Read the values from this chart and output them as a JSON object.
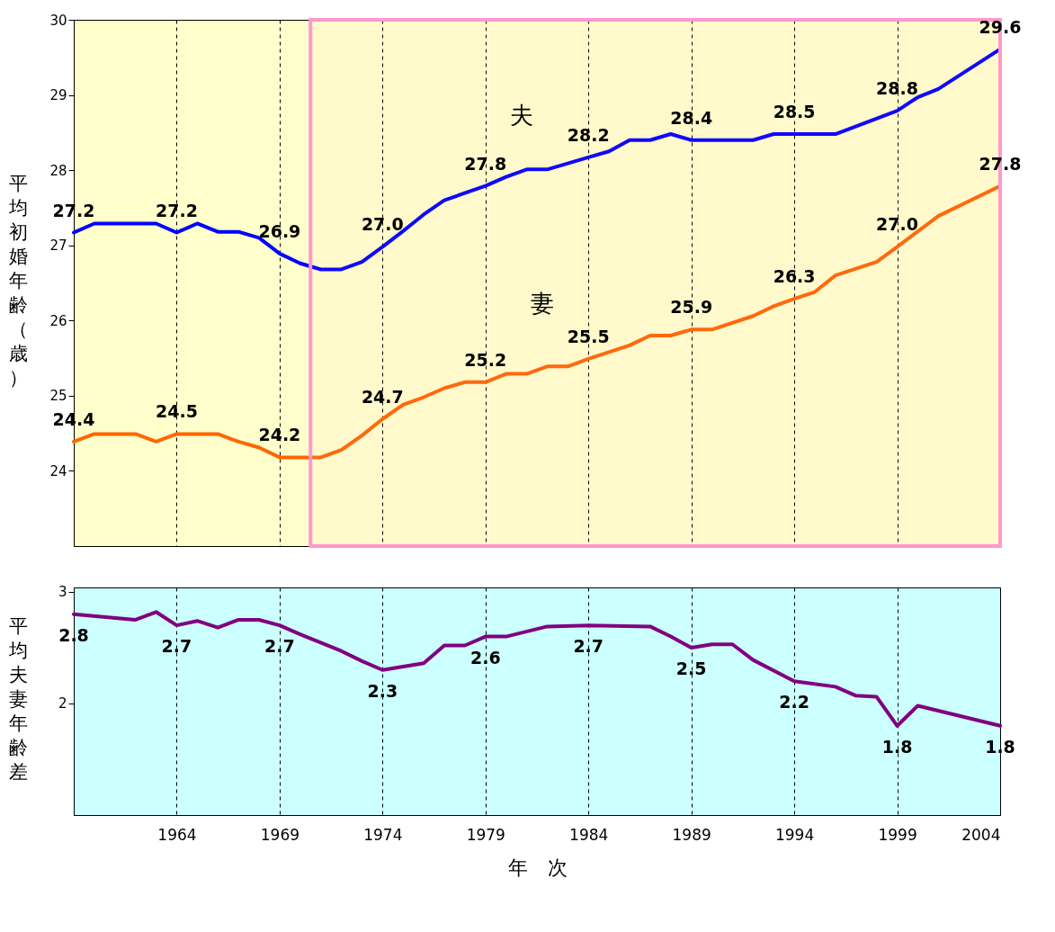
{
  "chart_data": [
    {
      "type": "line",
      "ylabel": "平均初婚年齢（歳）",
      "xlim": [
        1959,
        2004
      ],
      "xticks": [
        1964,
        1969,
        1974,
        1979,
        1984,
        1989,
        1994,
        1999,
        2004
      ],
      "ylim": [
        23,
        30
      ],
      "yticks": [
        24,
        25,
        26,
        27,
        28,
        29,
        30
      ],
      "grid": "x",
      "tick_labels": "y",
      "legend": false,
      "bands": [
        {
          "axis": "x",
          "from": 1970.5,
          "to": 2004,
          "color": "#ff99cc"
        }
      ],
      "series": [
        {
          "name": "夫",
          "color": "#0000ff",
          "x": [
            1959,
            1960,
            1963,
            1964,
            1965,
            1966,
            1967,
            1968,
            1969,
            1970,
            1971,
            1972,
            1973,
            1974,
            1975,
            1976,
            1977,
            1979,
            1980,
            1981,
            1982,
            1984,
            1985,
            1986,
            1987,
            1988,
            1989,
            1992,
            1993,
            1994,
            1996,
            1999,
            2000,
            2001,
            2004
          ],
          "values": [
            27.17,
            27.29,
            27.29,
            27.17,
            27.29,
            27.18,
            27.18,
            27.1,
            26.89,
            26.76,
            26.68,
            26.68,
            26.78,
            26.98,
            27.19,
            27.41,
            27.6,
            27.79,
            27.91,
            28.01,
            28.01,
            28.17,
            28.25,
            28.4,
            28.4,
            28.48,
            28.4,
            28.4,
            28.48,
            28.48,
            28.48,
            28.79,
            28.97,
            29.08,
            29.61
          ],
          "value_labels": [
            "27.2",
            null,
            null,
            "27.2",
            null,
            null,
            null,
            null,
            "26.9",
            null,
            null,
            null,
            null,
            "27.0",
            null,
            null,
            null,
            "27.8",
            null,
            null,
            null,
            "28.2",
            null,
            null,
            null,
            null,
            "28.4",
            null,
            null,
            "28.5",
            null,
            "28.8",
            null,
            null,
            "29.6"
          ]
        },
        {
          "name": "妻",
          "color": "#ff6600",
          "x": [
            1959,
            1960,
            1962,
            1963,
            1964,
            1966,
            1967,
            1968,
            1969,
            1971,
            1972,
            1973,
            1974,
            1975,
            1976,
            1977,
            1978,
            1979,
            1980,
            1981,
            1982,
            1983,
            1984,
            1986,
            1987,
            1988,
            1989,
            1990,
            1992,
            1993,
            1994,
            1995,
            1996,
            1998,
            1999,
            2001,
            2004
          ],
          "values": [
            24.39,
            24.49,
            24.49,
            24.39,
            24.49,
            24.49,
            24.39,
            24.31,
            24.18,
            24.18,
            24.28,
            24.47,
            24.69,
            24.88,
            24.98,
            25.1,
            25.18,
            25.18,
            25.29,
            25.29,
            25.39,
            25.39,
            25.49,
            25.67,
            25.8,
            25.8,
            25.88,
            25.88,
            26.06,
            26.19,
            26.29,
            26.38,
            26.6,
            26.78,
            26.98,
            27.39,
            27.79
          ],
          "value_labels": [
            "24.4",
            null,
            null,
            null,
            "24.5",
            null,
            null,
            null,
            "24.2",
            null,
            null,
            null,
            "24.7",
            null,
            null,
            null,
            null,
            "25.2",
            null,
            null,
            null,
            null,
            "25.5",
            null,
            null,
            null,
            "25.9",
            null,
            null,
            null,
            "26.3",
            null,
            null,
            null,
            "27.0",
            null,
            "27.8"
          ]
        }
      ]
    },
    {
      "type": "line",
      "xlabel": "年　次",
      "ylabel": "平均夫妻年齢差",
      "xlim": [
        1959,
        2004
      ],
      "xticks": [
        1964,
        1969,
        1974,
        1979,
        1984,
        1989,
        1994,
        1999,
        2004
      ],
      "ylim": [
        1.0,
        3.04
      ],
      "yticks": [
        2,
        3
      ],
      "grid": "x",
      "legend": false,
      "color": "#800080",
      "x": [
        1959,
        1962,
        1963,
        1964,
        1965,
        1966,
        1967,
        1968,
        1969,
        1970,
        1972,
        1973,
        1974,
        1976,
        1977,
        1978,
        1979,
        1980,
        1982,
        1984,
        1987,
        1988,
        1989,
        1990,
        1991,
        1992,
        1994,
        1996,
        1997,
        1998,
        1999,
        2000,
        2004
      ],
      "values": [
        2.8,
        2.75,
        2.82,
        2.7,
        2.74,
        2.68,
        2.75,
        2.75,
        2.7,
        2.62,
        2.47,
        2.38,
        2.3,
        2.36,
        2.52,
        2.52,
        2.6,
        2.6,
        2.69,
        2.7,
        2.69,
        2.6,
        2.5,
        2.53,
        2.53,
        2.39,
        2.2,
        2.15,
        2.07,
        2.06,
        1.8,
        1.98,
        1.8
      ],
      "value_labels": [
        "2.8",
        null,
        null,
        "2.7",
        null,
        null,
        null,
        null,
        "2.7",
        null,
        null,
        null,
        "2.3",
        null,
        null,
        null,
        "2.6",
        null,
        null,
        "2.7",
        null,
        null,
        "2.5",
        null,
        null,
        null,
        "2.2",
        null,
        null,
        null,
        "1.8",
        null,
        "1.8"
      ]
    }
  ]
}
